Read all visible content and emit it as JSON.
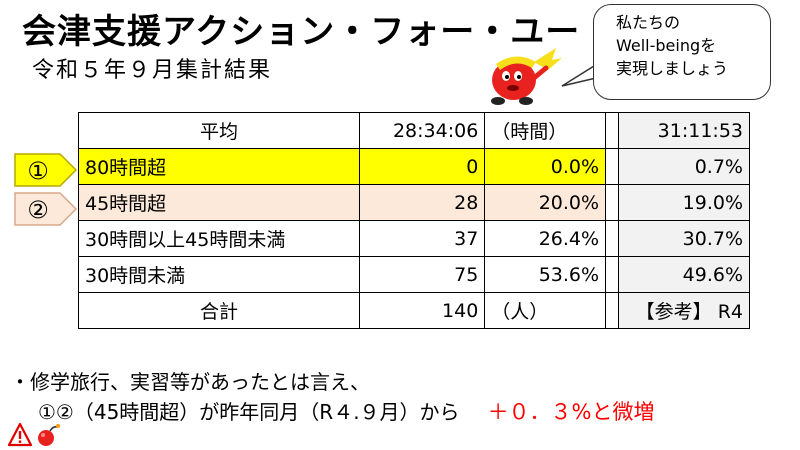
{
  "title": "会津支援アクション・フォー・ユー",
  "subtitle": "令和５年９月集計結果",
  "bubble": {
    "lines": [
      "私たちの",
      "Well-beingを",
      "実現しましょう"
    ]
  },
  "table": {
    "header": {
      "label": "平均",
      "count": "28:34:06",
      "unit": "（時間）",
      "r4": "31:11:53"
    },
    "rows": [
      {
        "label": "80時間超",
        "count": "0",
        "pct": "0.0%",
        "r4": "0.7%"
      },
      {
        "label": "45時間超",
        "count": "28",
        "pct": "20.0%",
        "r4": "19.0%"
      },
      {
        "label": "30時間以上45時間未満",
        "count": "37",
        "pct": "26.4%",
        "r4": "30.7%"
      },
      {
        "label": "30時間未満",
        "count": "75",
        "pct": "53.6%",
        "r4": "49.6%"
      }
    ],
    "footer": {
      "label": "合計",
      "count": "140",
      "unit": "（人）",
      "r4": "【参考】 R4"
    }
  },
  "markers": [
    "①",
    "②"
  ],
  "notes": {
    "line1": "・修学旅行、実習等があったとは言え、",
    "line2": "①②（45時間超）が昨年同月（R４.９月）から",
    "highlight": "＋０．３%と微増"
  },
  "icons": [
    "warning-icon",
    "bomb-icon"
  ],
  "colors": {
    "row1_bg": "#ffff00",
    "row2_bg": "#fde9d9",
    "r4_bg": "#f2f2f2",
    "highlight": "#ff0000"
  }
}
